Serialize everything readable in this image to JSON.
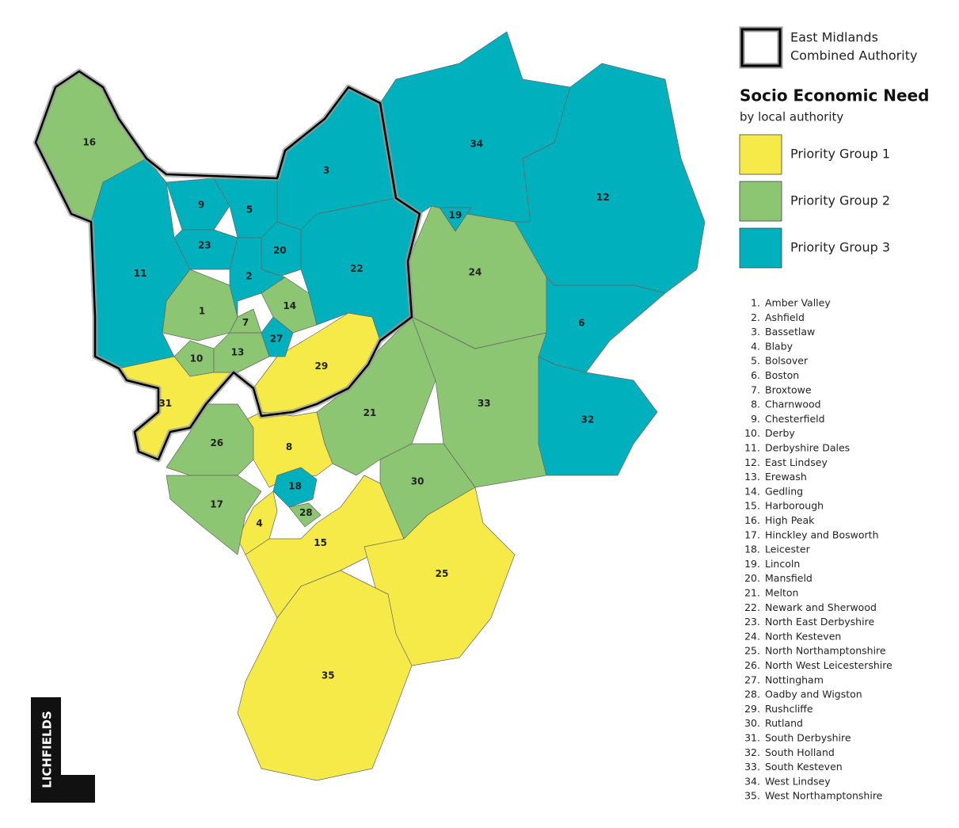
{
  "legend": {
    "boundary": [
      "East Midlands",
      "Combined Authority"
    ],
    "title": "Socio Economic Need",
    "subtitle": "by local authority",
    "groups": [
      {
        "name": "Priority Group 1",
        "color": "#f6ea48",
        "areas": [
          "31",
          "29",
          "8",
          "4",
          "15",
          "25",
          "35"
        ]
      },
      {
        "name": "Priority Group 2",
        "color": "#8cc673",
        "areas": [
          "16",
          "1",
          "10",
          "13",
          "7",
          "14",
          "26",
          "17",
          "28",
          "24",
          "21",
          "33",
          "30"
        ]
      },
      {
        "name": "Priority Group 3",
        "color": "#00b1bd",
        "areas": [
          "11",
          "9",
          "23",
          "5",
          "20",
          "2",
          "27",
          "3",
          "22",
          "34",
          "19",
          "12",
          "6",
          "32",
          "18"
        ]
      }
    ]
  },
  "key": [
    {
      "number": "1.",
      "name": "Amber Valley"
    },
    {
      "number": "2.",
      "name": "Ashfield"
    },
    {
      "number": "3.",
      "name": "Bassetlaw"
    },
    {
      "number": "4.",
      "name": "Blaby"
    },
    {
      "number": "5.",
      "name": "Bolsover"
    },
    {
      "number": "6.",
      "name": "Boston"
    },
    {
      "number": "7.",
      "name": "Broxtowe"
    },
    {
      "number": "8.",
      "name": "Charnwood"
    },
    {
      "number": "9.",
      "name": "Chesterfield"
    },
    {
      "number": "10.",
      "name": "Derby"
    },
    {
      "number": "11.",
      "name": "Derbyshire Dales"
    },
    {
      "number": "12.",
      "name": "East Lindsey"
    },
    {
      "number": "13.",
      "name": "Erewash"
    },
    {
      "number": "14.",
      "name": "Gedling"
    },
    {
      "number": "15.",
      "name": "Harborough"
    },
    {
      "number": "16.",
      "name": "High Peak"
    },
    {
      "number": "17.",
      "name": "Hinckley and Bosworth"
    },
    {
      "number": "18.",
      "name": "Leicester"
    },
    {
      "number": "19.",
      "name": "Lincoln"
    },
    {
      "number": "20.",
      "name": "Mansfield"
    },
    {
      "number": "21.",
      "name": "Melton"
    },
    {
      "number": "22.",
      "name": "Newark and Sherwood"
    },
    {
      "number": "23.",
      "name": "North East Derbyshire"
    },
    {
      "number": "24.",
      "name": "North Kesteven"
    },
    {
      "number": "25.",
      "name": "North Northamptonshire"
    },
    {
      "number": "26.",
      "name": "North West Leicestershire"
    },
    {
      "number": "27.",
      "name": "Nottingham"
    },
    {
      "number": "28.",
      "name": "Oadby and Wigston"
    },
    {
      "number": "29.",
      "name": "Rushcliffe"
    },
    {
      "number": "30.",
      "name": "Rutland"
    },
    {
      "number": "31.",
      "name": "South Derbyshire"
    },
    {
      "number": "32.",
      "name": "South Holland"
    },
    {
      "number": "33.",
      "name": "South Kesteven"
    },
    {
      "number": "34.",
      "name": "West Lindsey"
    },
    {
      "number": "35.",
      "name": "West Northamptonshire"
    }
  ],
  "logo": "LICHFIELDS"
}
